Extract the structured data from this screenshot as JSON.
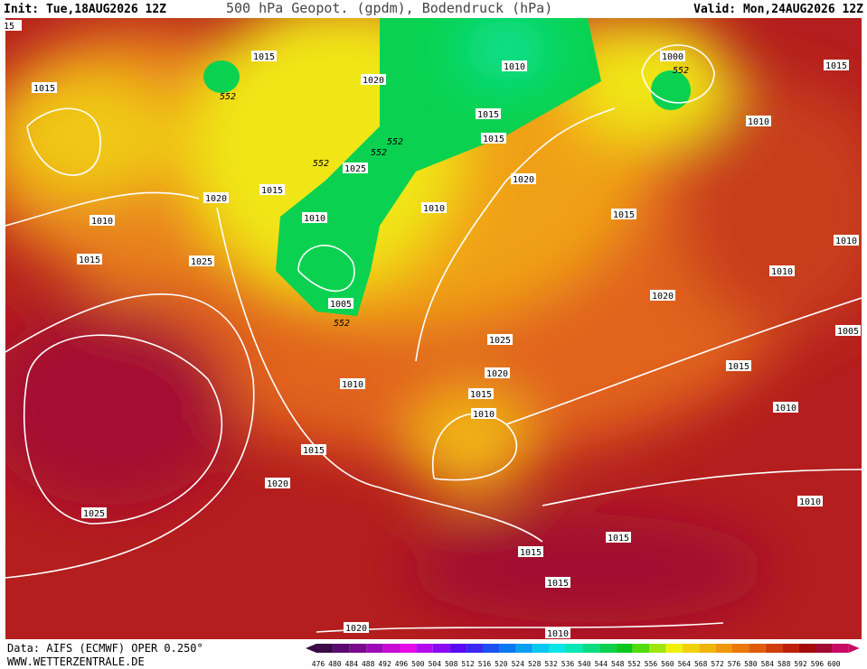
{
  "header": {
    "init": "Init: Tue,18AUG2026 12Z",
    "title": "500 hPa Geopot. (gpdm), Bodendruck (hPa)",
    "valid": "Valid: Mon,24AUG2026 12Z"
  },
  "footer": {
    "source": "Data: AIFS (ECMWF) OPER 0.250°",
    "site": "WWW.WETTERZENTRALE.DE"
  },
  "map": {
    "isobar_labels": [
      "15",
      "1015",
      "1015",
      "1020",
      "1010",
      "1000",
      "552",
      "1015",
      "552",
      "1015",
      "1010",
      "552",
      "552",
      "552",
      "1025",
      "1015",
      "1020",
      "1015",
      "1020",
      "1010",
      "1010",
      "1015",
      "1010",
      "1010",
      "1015",
      "1025",
      "1010",
      "1020",
      "1005",
      "552",
      "1005",
      "1025",
      "1015",
      "1020",
      "1010",
      "1015",
      "1010",
      "1010",
      "1015",
      "1020",
      "1010",
      "1025",
      "1015",
      "1015",
      "1015",
      "1020",
      "1010"
    ]
  },
  "colorbar": {
    "labels": [
      "476",
      "480",
      "484",
      "488",
      "492",
      "496",
      "500",
      "504",
      "508",
      "512",
      "516",
      "520",
      "524",
      "528",
      "532",
      "536",
      "540",
      "544",
      "548",
      "552",
      "556",
      "560",
      "564",
      "568",
      "572",
      "576",
      "580",
      "584",
      "588",
      "592",
      "596",
      "600"
    ],
    "colors": [
      "#3c0a46",
      "#5a0a6e",
      "#780a8c",
      "#9b0ab4",
      "#c80ad2",
      "#e60ae6",
      "#b40af0",
      "#8c0af0",
      "#5a0af0",
      "#3c28f0",
      "#1e50f0",
      "#0a78f0",
      "#0aa0f0",
      "#0ac8f0",
      "#0ae6e6",
      "#0ae6b4",
      "#0adc82",
      "#0ad250",
      "#0ac81e",
      "#50dc0a",
      "#a0e60a",
      "#f0f00a",
      "#f0d20a",
      "#f0b40a",
      "#f0960a",
      "#eb780a",
      "#e15a0a",
      "#d23c0a",
      "#be1e0a",
      "#a50a0a",
      "#a00a32",
      "#c80a64"
    ]
  }
}
